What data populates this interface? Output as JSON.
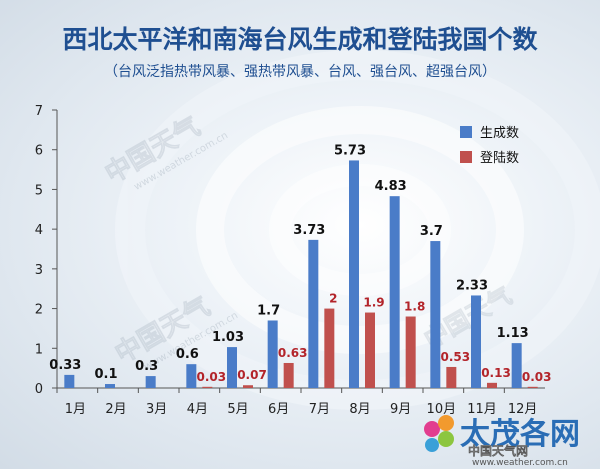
{
  "chart_data": {
    "type": "bar",
    "title": "西北太平洋和南海台风生成和登陆我国个数",
    "subtitle": "（台风泛指热带风暴、强热带风暴、台风、强台风、超强台风）",
    "categories": [
      "1月",
      "2月",
      "3月",
      "4月",
      "5月",
      "6月",
      "7月",
      "8月",
      "9月",
      "10月",
      "11月",
      "12月"
    ],
    "series": [
      {
        "name": "生成数",
        "color": "#4a7cc8",
        "values": [
          0.33,
          0.1,
          0.3,
          0.6,
          1.03,
          1.7,
          3.73,
          5.73,
          4.83,
          3.7,
          2.33,
          1.13
        ],
        "labels": [
          "0.33",
          "0.1",
          "0.3",
          "0.6",
          "1.03",
          "1.7",
          "3.73",
          "5.73",
          "4.83",
          "3.7",
          "2.33",
          "1.13"
        ]
      },
      {
        "name": "登陆数",
        "color": "#c0504d",
        "values": [
          0,
          0,
          0,
          0.03,
          0.07,
          0.63,
          2,
          1.9,
          1.8,
          0.53,
          0.13,
          0.03
        ],
        "labels": [
          "",
          "",
          "",
          "0.03",
          "0.07",
          "0.63",
          "2",
          "1.9",
          "1.8",
          "0.53",
          "0.13",
          "0.03"
        ]
      }
    ],
    "ylim": [
      0,
      7
    ],
    "yticks": [
      0,
      1,
      2,
      3,
      4,
      5,
      6,
      7
    ],
    "grid": false,
    "legend": "top-right"
  },
  "watermark": {
    "left_text": "中国天气",
    "site_text": "www.weather.com.cn",
    "brand_text": "太茂各网",
    "brand_sub": "中国天气网",
    "brand_url": "www.weather.com.cn"
  },
  "colors": {
    "title": "#1f4f91",
    "axis": "#555555"
  }
}
